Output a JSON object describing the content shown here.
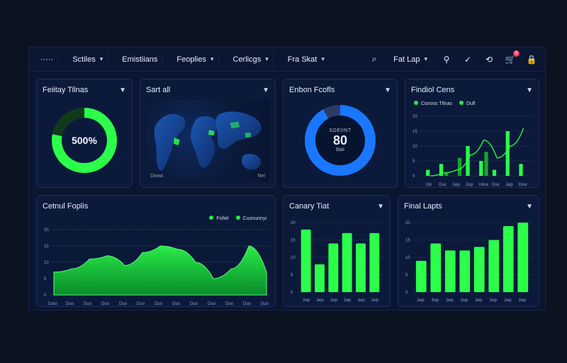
{
  "topbar": {
    "logo_text": "·····",
    "menus": [
      {
        "label": "Sctiles",
        "has_caret": true
      },
      {
        "label": "Emistiians",
        "has_caret": false
      },
      {
        "label": "Feoplies",
        "has_caret": true
      },
      {
        "label": "Cerlicgs",
        "has_caret": true
      },
      {
        "label": "Fra Skat",
        "has_caret": true
      }
    ],
    "right": {
      "dropdown_label": "Fat Lap",
      "icons": [
        "search-icon",
        "person-icon",
        "check-icon",
        "refresh-icon",
        "cart-icon",
        "lock-icon"
      ],
      "badge_count": "0"
    }
  },
  "panels": {
    "p1": {
      "title": "Feiitay Tilnas",
      "value_label": "500%"
    },
    "p2": {
      "title": "Sart all",
      "left_label": "Dowa",
      "right_label": "Nel"
    },
    "p3": {
      "title": "Enbon Fcofls",
      "center_top": "SOEIINT",
      "center_value": "80",
      "center_bottom": "Bali"
    },
    "p4": {
      "title": "Findiol Cens",
      "legend": [
        "Csnoos Tilnas",
        "Dufl"
      ]
    },
    "p5": {
      "title": "Cetnul Foplis",
      "legend": [
        "Fofiel",
        "Cuonunnyi"
      ]
    },
    "p6": {
      "title": "Canary Tiat"
    },
    "p7": {
      "title": "Final Lapts"
    }
  },
  "chart_data": [
    {
      "type": "bar",
      "title": "Findiol Cens",
      "categories": [
        "Ulo",
        "Duv",
        "Jaip",
        "Jiup",
        "Uiloe",
        "Duv",
        "Jaip",
        "Duw"
      ],
      "series": [
        {
          "name": "Csnoos Tilnas",
          "values": [
            2,
            4,
            0,
            10,
            5,
            2,
            15,
            4
          ]
        },
        {
          "name": "Dufl",
          "values": [
            0,
            1,
            6,
            0,
            8,
            0,
            0,
            0
          ]
        }
      ],
      "ylim": [
        0,
        20
      ],
      "yticks": [
        0,
        5,
        10,
        15,
        20
      ],
      "line_overlay": [
        0,
        1,
        2,
        7,
        12,
        6,
        10,
        16
      ]
    },
    {
      "type": "area",
      "title": "Cetnul Foplis",
      "xlabels": [
        "Dato",
        "Duo",
        "Duo",
        "Duo",
        "Duo",
        "Duo",
        "Duo",
        "Duo",
        "Duo",
        "Duo",
        "Duo",
        "Duo",
        "Duo"
      ],
      "yticks": [
        0,
        5,
        10,
        15,
        20
      ],
      "values": [
        7,
        8,
        11,
        12,
        9,
        13,
        15,
        14,
        10,
        5,
        8,
        15,
        7
      ]
    },
    {
      "type": "bar",
      "title": "Canary Tiat",
      "categories": [
        "Jwp",
        "Jwp",
        "Jwp",
        "Jwp",
        "Jwp",
        "Jwp"
      ],
      "values": [
        18,
        8,
        14,
        17,
        14,
        17
      ],
      "yticks": [
        0,
        5,
        10,
        15,
        20
      ],
      "ylim": [
        0,
        20
      ]
    },
    {
      "type": "bar",
      "title": "Final Lapts",
      "categories": [
        "Jwp",
        "Jwp",
        "Jwp",
        "Jwp",
        "Jwp",
        "Jwp",
        "Jwp",
        "Jwp"
      ],
      "values": [
        9,
        14,
        12,
        12,
        13,
        15,
        19,
        20
      ],
      "yticks": [
        0,
        5,
        10,
        15,
        20
      ],
      "ylim": [
        0,
        20
      ]
    }
  ],
  "colors": {
    "bg": "#0b1220",
    "panel": "#0b1a3a",
    "panel_border": "#1a2b5a",
    "green": "#2bff4a",
    "green_dim": "#14a82d",
    "blue": "#1a77ff"
  }
}
